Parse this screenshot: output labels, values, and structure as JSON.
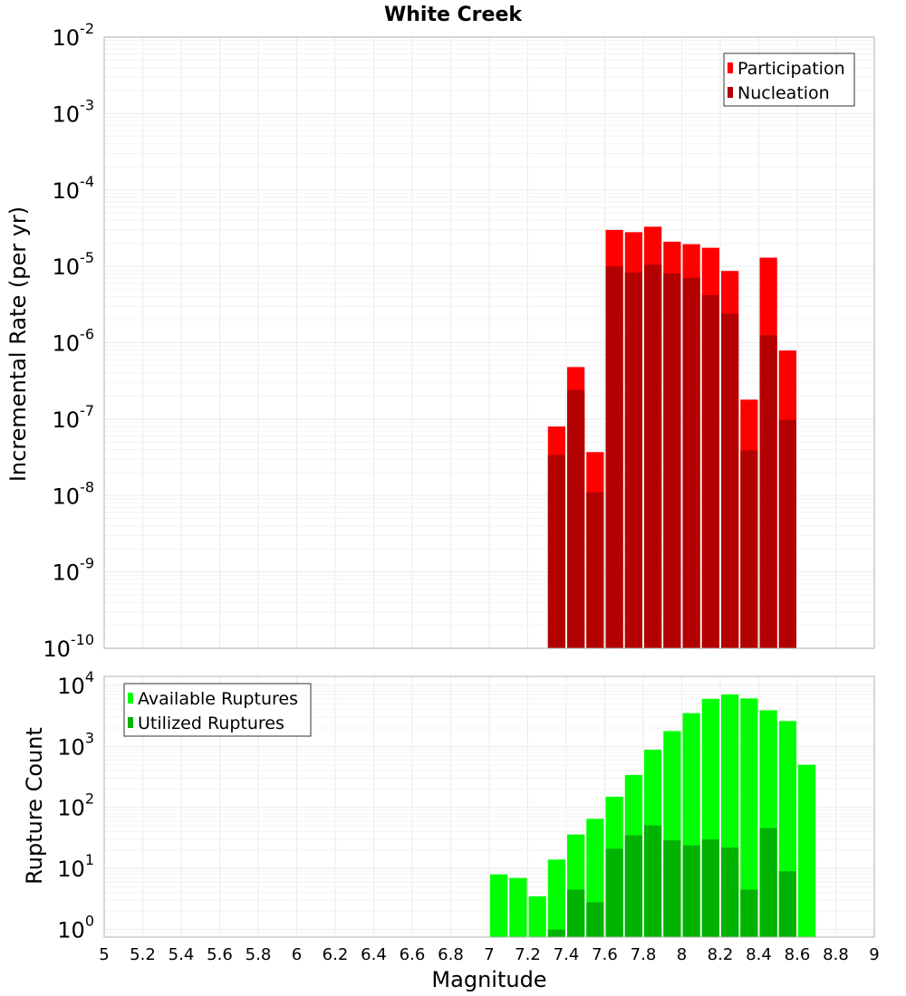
{
  "chart_data": [
    {
      "type": "bar",
      "title": "White Creek",
      "xlabel": "",
      "ylabel": "Incremental Rate (per yr)",
      "yscale": "log",
      "ylim": [
        1e-10,
        0.01
      ],
      "xlim": [
        5,
        9
      ],
      "y_ticks": [
        {
          "base": "10",
          "exp": "-10"
        },
        {
          "base": "10",
          "exp": "-9"
        },
        {
          "base": "10",
          "exp": "-8"
        },
        {
          "base": "10",
          "exp": "-7"
        },
        {
          "base": "10",
          "exp": "-6"
        },
        {
          "base": "10",
          "exp": "-5"
        },
        {
          "base": "10",
          "exp": "-4"
        },
        {
          "base": "10",
          "exp": "-3"
        },
        {
          "base": "10",
          "exp": "-2"
        }
      ],
      "grid": true,
      "legend_position": "top-right",
      "x": [
        7.35,
        7.45,
        7.55,
        7.65,
        7.75,
        7.85,
        7.95,
        8.05,
        8.15,
        8.25,
        8.35,
        8.45,
        8.55
      ],
      "series": [
        {
          "name": "Participation",
          "color": "#ff0000",
          "values": [
            8e-08,
            4.8e-07,
            3.7e-08,
            3e-05,
            2.8e-05,
            3.3e-05,
            2.1e-05,
            1.95e-05,
            1.75e-05,
            8.7e-06,
            1.8e-07,
            1.3e-05,
            7.9e-07
          ]
        },
        {
          "name": "Nucleation",
          "color": "#b30000",
          "values": [
            3.4e-08,
            2.4e-07,
            1.1e-08,
            1e-05,
            8.3e-06,
            1.05e-05,
            8.1e-06,
            7.1e-06,
            4.2e-06,
            2.4e-06,
            3.9e-08,
            1.25e-06,
            9.8e-08
          ]
        }
      ]
    },
    {
      "type": "bar",
      "title": "",
      "xlabel": "Magnitude",
      "ylabel": "Rupture Count",
      "yscale": "log",
      "ylim": [
        0.75,
        14000
      ],
      "xlim": [
        5,
        9
      ],
      "x_ticks": [
        "5",
        "5.2",
        "5.4",
        "5.6",
        "5.8",
        "6",
        "6.2",
        "6.4",
        "6.6",
        "6.8",
        "7",
        "7.2",
        "7.4",
        "7.6",
        "7.8",
        "8",
        "8.2",
        "8.4",
        "8.6",
        "8.8",
        "9"
      ],
      "y_ticks": [
        {
          "base": "10",
          "exp": "0"
        },
        {
          "base": "10",
          "exp": "1"
        },
        {
          "base": "10",
          "exp": "2"
        },
        {
          "base": "10",
          "exp": "3"
        },
        {
          "base": "10",
          "exp": "4"
        }
      ],
      "grid": true,
      "legend_position": "top-left",
      "x": [
        7.05,
        7.15,
        7.25,
        7.35,
        7.45,
        7.55,
        7.65,
        7.75,
        7.85,
        7.95,
        8.05,
        8.15,
        8.25,
        8.35,
        8.45,
        8.55,
        8.65
      ],
      "series": [
        {
          "name": "Available Ruptures",
          "color": "#00ff00",
          "values": [
            8,
            7,
            3.5,
            14,
            36,
            65,
            150,
            340,
            880,
            1780,
            3500,
            6000,
            7100,
            6100,
            3900,
            2600,
            500
          ]
        },
        {
          "name": "Utilized Ruptures",
          "color": "#00b300",
          "values": [
            null,
            null,
            null,
            1,
            4.5,
            2.8,
            21,
            35,
            51,
            29,
            24,
            30,
            22,
            4.5,
            46,
            9,
            null
          ]
        }
      ]
    }
  ]
}
